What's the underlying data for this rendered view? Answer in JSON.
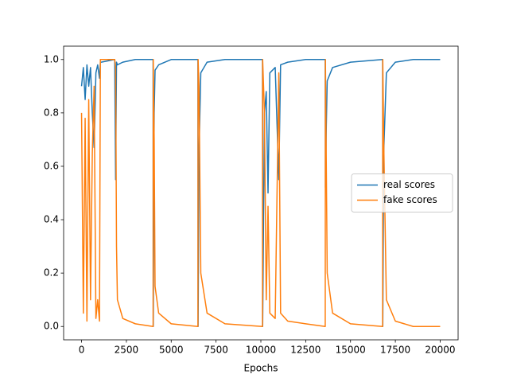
{
  "chart_data": {
    "type": "line",
    "x_label": "Epochs",
    "x": [
      0,
      100,
      200,
      300,
      400,
      500,
      600,
      700,
      800,
      900,
      1000,
      1050,
      1100,
      1850,
      1900,
      1950,
      2000,
      2300,
      3000,
      3990,
      4000,
      4050,
      4100,
      4300,
      5000,
      6490,
      6500,
      6550,
      6650,
      7000,
      8000,
      10090,
      10100,
      10200,
      10300,
      10400,
      10500,
      10800,
      11000,
      11100,
      11500,
      12500,
      13590,
      13600,
      13650,
      13700,
      14000,
      15000,
      16790,
      16800,
      16850,
      17000,
      17500,
      18500,
      20000
    ],
    "series": [
      {
        "name": "real scores",
        "color": "#1f77b4",
        "values": [
          0.9,
          0.97,
          0.85,
          0.98,
          0.9,
          0.97,
          0.8,
          0.67,
          0.95,
          0.98,
          0.93,
          0.99,
          0.99,
          1.0,
          0.55,
          0.99,
          0.98,
          0.99,
          1.0,
          1.0,
          0.0,
          0.8,
          0.96,
          0.98,
          1.0,
          1.0,
          0.0,
          0.65,
          0.95,
          0.99,
          1.0,
          1.0,
          0.0,
          0.8,
          0.88,
          0.5,
          0.95,
          0.97,
          0.55,
          0.98,
          0.99,
          1.0,
          1.0,
          0.52,
          0.75,
          0.92,
          0.97,
          0.99,
          1.0,
          0.0,
          0.65,
          0.95,
          0.99,
          1.0,
          1.0
        ]
      },
      {
        "name": "fake scores",
        "color": "#ff7f0e",
        "values": [
          0.8,
          0.05,
          0.78,
          0.02,
          0.85,
          0.1,
          0.65,
          0.9,
          0.03,
          0.1,
          0.02,
          1.0,
          1.0,
          1.0,
          0.97,
          0.3,
          0.1,
          0.03,
          0.01,
          0.0,
          1.0,
          0.7,
          0.15,
          0.05,
          0.01,
          0.0,
          1.0,
          0.9,
          0.2,
          0.05,
          0.01,
          0.0,
          1.0,
          0.8,
          0.1,
          0.45,
          0.05,
          0.03,
          0.95,
          0.05,
          0.02,
          0.01,
          0.0,
          1.0,
          0.6,
          0.2,
          0.05,
          0.01,
          0.0,
          1.0,
          0.7,
          0.1,
          0.02,
          0.0,
          0.0
        ]
      }
    ],
    "xlim": [
      -1000,
      21000
    ],
    "ylim": [
      -0.05,
      1.05
    ],
    "xticks": [
      0,
      2500,
      5000,
      7500,
      10000,
      12500,
      15000,
      17500,
      20000
    ],
    "yticks": [
      {
        "value": 0,
        "label": "0.0"
      },
      0.2,
      0.4,
      0.6,
      0.8,
      {
        "value": 1,
        "label": "1.0"
      }
    ],
    "legend": "center right"
  }
}
